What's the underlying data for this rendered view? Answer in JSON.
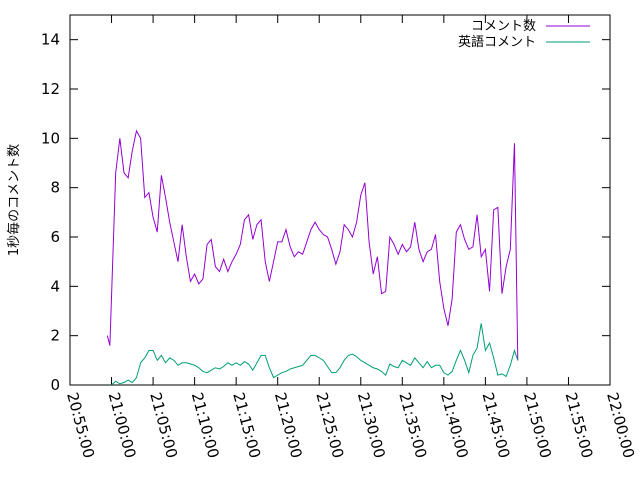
{
  "chart_data": {
    "type": "line",
    "title": "",
    "xlabel": "",
    "ylabel": "1秒毎のコメント数",
    "xlim": [
      "20:55:00",
      "22:00:00"
    ],
    "ylim": [
      0,
      15
    ],
    "x_ticks": [
      "20:55:00",
      "21:00:00",
      "21:05:00",
      "21:10:00",
      "21:15:00",
      "21:20:00",
      "21:25:00",
      "21:30:00",
      "21:35:00",
      "21:40:00",
      "21:45:00",
      "21:50:00",
      "21:55:00",
      "22:00:00"
    ],
    "y_ticks": [
      0,
      2,
      4,
      6,
      8,
      10,
      12,
      14
    ],
    "legend_position": "top-right",
    "grid": false,
    "series": [
      {
        "name": "コメント数",
        "color": "#9400d3",
        "points": [
          [
            "20:59:30",
            2.0
          ],
          [
            "20:59:48",
            1.6
          ],
          [
            "21:00:30",
            8.6
          ],
          [
            "21:01:00",
            10.0
          ],
          [
            "21:01:30",
            8.6
          ],
          [
            "21:02:00",
            8.4
          ],
          [
            "21:02:30",
            9.5
          ],
          [
            "21:03:00",
            10.3
          ],
          [
            "21:03:30",
            10.0
          ],
          [
            "21:04:00",
            7.6
          ],
          [
            "21:04:30",
            7.8
          ],
          [
            "21:05:00",
            6.8
          ],
          [
            "21:05:30",
            6.2
          ],
          [
            "21:06:00",
            8.5
          ],
          [
            "21:06:30",
            7.6
          ],
          [
            "21:07:00",
            6.6
          ],
          [
            "21:07:30",
            5.8
          ],
          [
            "21:08:00",
            5.0
          ],
          [
            "21:08:30",
            6.5
          ],
          [
            "21:09:00",
            5.2
          ],
          [
            "21:09:30",
            4.2
          ],
          [
            "21:10:00",
            4.5
          ],
          [
            "21:10:30",
            4.1
          ],
          [
            "21:11:00",
            4.3
          ],
          [
            "21:11:30",
            5.7
          ],
          [
            "21:12:00",
            5.9
          ],
          [
            "21:12:30",
            4.8
          ],
          [
            "21:13:00",
            4.6
          ],
          [
            "21:13:30",
            5.1
          ],
          [
            "21:14:00",
            4.6
          ],
          [
            "21:14:30",
            5.0
          ],
          [
            "21:15:00",
            5.3
          ],
          [
            "21:15:30",
            5.7
          ],
          [
            "21:16:00",
            6.7
          ],
          [
            "21:16:30",
            6.9
          ],
          [
            "21:17:00",
            5.9
          ],
          [
            "21:17:30",
            6.5
          ],
          [
            "21:18:00",
            6.7
          ],
          [
            "21:18:30",
            5.0
          ],
          [
            "21:19:00",
            4.2
          ],
          [
            "21:19:30",
            5.0
          ],
          [
            "21:20:00",
            5.8
          ],
          [
            "21:20:30",
            5.8
          ],
          [
            "21:21:00",
            6.3
          ],
          [
            "21:21:30",
            5.6
          ],
          [
            "21:22:00",
            5.2
          ],
          [
            "21:22:30",
            5.4
          ],
          [
            "21:23:00",
            5.3
          ],
          [
            "21:23:30",
            5.8
          ],
          [
            "21:24:00",
            6.3
          ],
          [
            "21:24:30",
            6.6
          ],
          [
            "21:25:00",
            6.3
          ],
          [
            "21:25:30",
            6.1
          ],
          [
            "21:26:00",
            6.0
          ],
          [
            "21:26:30",
            5.5
          ],
          [
            "21:27:00",
            4.9
          ],
          [
            "21:27:30",
            5.4
          ],
          [
            "21:28:00",
            6.5
          ],
          [
            "21:28:30",
            6.3
          ],
          [
            "21:29:00",
            6.0
          ],
          [
            "21:29:30",
            6.6
          ],
          [
            "21:30:00",
            7.7
          ],
          [
            "21:30:30",
            8.2
          ],
          [
            "21:31:00",
            5.8
          ],
          [
            "21:31:30",
            4.5
          ],
          [
            "21:32:00",
            5.2
          ],
          [
            "21:32:30",
            3.7
          ],
          [
            "21:33:00",
            3.8
          ],
          [
            "21:33:30",
            6.0
          ],
          [
            "21:34:00",
            5.7
          ],
          [
            "21:34:30",
            5.3
          ],
          [
            "21:35:00",
            5.7
          ],
          [
            "21:35:30",
            5.4
          ],
          [
            "21:36:00",
            5.6
          ],
          [
            "21:36:30",
            6.6
          ],
          [
            "21:37:00",
            5.5
          ],
          [
            "21:37:30",
            5.0
          ],
          [
            "21:38:00",
            5.4
          ],
          [
            "21:38:30",
            5.5
          ],
          [
            "21:39:00",
            6.1
          ],
          [
            "21:39:30",
            4.2
          ],
          [
            "21:40:00",
            3.1
          ],
          [
            "21:40:30",
            2.4
          ],
          [
            "21:41:00",
            3.5
          ],
          [
            "21:41:30",
            6.2
          ],
          [
            "21:42:00",
            6.5
          ],
          [
            "21:42:30",
            5.9
          ],
          [
            "21:43:00",
            5.5
          ],
          [
            "21:43:30",
            5.6
          ],
          [
            "21:44:00",
            6.9
          ],
          [
            "21:44:30",
            5.2
          ],
          [
            "21:45:00",
            5.5
          ],
          [
            "21:45:30",
            3.8
          ],
          [
            "21:46:00",
            7.1
          ],
          [
            "21:46:30",
            7.2
          ],
          [
            "21:47:00",
            3.7
          ],
          [
            "21:47:30",
            4.8
          ],
          [
            "21:48:00",
            5.5
          ],
          [
            "21:48:30",
            9.8
          ],
          [
            "21:48:54",
            1.0
          ]
        ]
      },
      {
        "name": "英語コメント",
        "color": "#009e73",
        "points": [
          [
            "21:00:00",
            0.0
          ],
          [
            "21:00:30",
            0.15
          ],
          [
            "21:01:00",
            0.05
          ],
          [
            "21:01:30",
            0.1
          ],
          [
            "21:02:00",
            0.2
          ],
          [
            "21:02:30",
            0.1
          ],
          [
            "21:03:00",
            0.3
          ],
          [
            "21:03:30",
            0.9
          ],
          [
            "21:04:00",
            1.1
          ],
          [
            "21:04:30",
            1.4
          ],
          [
            "21:05:00",
            1.4
          ],
          [
            "21:05:30",
            1.0
          ],
          [
            "21:06:00",
            1.2
          ],
          [
            "21:06:30",
            0.9
          ],
          [
            "21:07:00",
            1.1
          ],
          [
            "21:07:30",
            1.0
          ],
          [
            "21:08:00",
            0.8
          ],
          [
            "21:08:30",
            0.9
          ],
          [
            "21:09:00",
            0.9
          ],
          [
            "21:09:30",
            0.85
          ],
          [
            "21:10:00",
            0.8
          ],
          [
            "21:10:30",
            0.7
          ],
          [
            "21:11:00",
            0.55
          ],
          [
            "21:11:30",
            0.5
          ],
          [
            "21:12:00",
            0.6
          ],
          [
            "21:12:30",
            0.7
          ],
          [
            "21:13:00",
            0.65
          ],
          [
            "21:13:30",
            0.75
          ],
          [
            "21:14:00",
            0.9
          ],
          [
            "21:14:30",
            0.8
          ],
          [
            "21:15:00",
            0.9
          ],
          [
            "21:15:30",
            0.8
          ],
          [
            "21:16:00",
            0.95
          ],
          [
            "21:16:30",
            0.85
          ],
          [
            "21:17:00",
            0.6
          ],
          [
            "21:17:30",
            0.9
          ],
          [
            "21:18:00",
            1.2
          ],
          [
            "21:18:30",
            1.2
          ],
          [
            "21:19:00",
            0.7
          ],
          [
            "21:19:30",
            0.3
          ],
          [
            "21:20:00",
            0.4
          ],
          [
            "21:20:30",
            0.5
          ],
          [
            "21:21:00",
            0.55
          ],
          [
            "21:21:30",
            0.65
          ],
          [
            "21:22:00",
            0.7
          ],
          [
            "21:22:30",
            0.75
          ],
          [
            "21:23:00",
            0.8
          ],
          [
            "21:23:30",
            1.0
          ],
          [
            "21:24:00",
            1.2
          ],
          [
            "21:24:30",
            1.2
          ],
          [
            "21:25:00",
            1.1
          ],
          [
            "21:25:30",
            1.0
          ],
          [
            "21:26:00",
            0.75
          ],
          [
            "21:26:30",
            0.5
          ],
          [
            "21:27:00",
            0.5
          ],
          [
            "21:27:30",
            0.7
          ],
          [
            "21:28:00",
            1.0
          ],
          [
            "21:28:30",
            1.2
          ],
          [
            "21:29:00",
            1.25
          ],
          [
            "21:29:30",
            1.15
          ],
          [
            "21:30:00",
            1.0
          ],
          [
            "21:30:30",
            0.9
          ],
          [
            "21:31:00",
            0.8
          ],
          [
            "21:31:30",
            0.7
          ],
          [
            "21:32:00",
            0.65
          ],
          [
            "21:32:30",
            0.55
          ],
          [
            "21:33:00",
            0.4
          ],
          [
            "21:33:30",
            0.85
          ],
          [
            "21:34:00",
            0.75
          ],
          [
            "21:34:30",
            0.7
          ],
          [
            "21:35:00",
            1.0
          ],
          [
            "21:35:30",
            0.9
          ],
          [
            "21:36:00",
            0.8
          ],
          [
            "21:36:30",
            1.1
          ],
          [
            "21:37:00",
            0.9
          ],
          [
            "21:37:30",
            0.7
          ],
          [
            "21:38:00",
            0.95
          ],
          [
            "21:38:30",
            0.7
          ],
          [
            "21:39:00",
            0.8
          ],
          [
            "21:39:30",
            0.8
          ],
          [
            "21:40:00",
            0.5
          ],
          [
            "21:40:30",
            0.4
          ],
          [
            "21:41:00",
            0.55
          ],
          [
            "21:41:30",
            1.0
          ],
          [
            "21:42:00",
            1.4
          ],
          [
            "21:42:30",
            1.0
          ],
          [
            "21:43:00",
            0.5
          ],
          [
            "21:43:30",
            1.2
          ],
          [
            "21:44:00",
            1.5
          ],
          [
            "21:44:30",
            2.5
          ],
          [
            "21:45:00",
            1.4
          ],
          [
            "21:45:30",
            1.7
          ],
          [
            "21:46:00",
            1.1
          ],
          [
            "21:46:30",
            0.4
          ],
          [
            "21:47:00",
            0.45
          ],
          [
            "21:47:30",
            0.35
          ],
          [
            "21:48:00",
            0.8
          ],
          [
            "21:48:30",
            1.4
          ],
          [
            "21:48:54",
            1.0
          ]
        ]
      }
    ]
  }
}
